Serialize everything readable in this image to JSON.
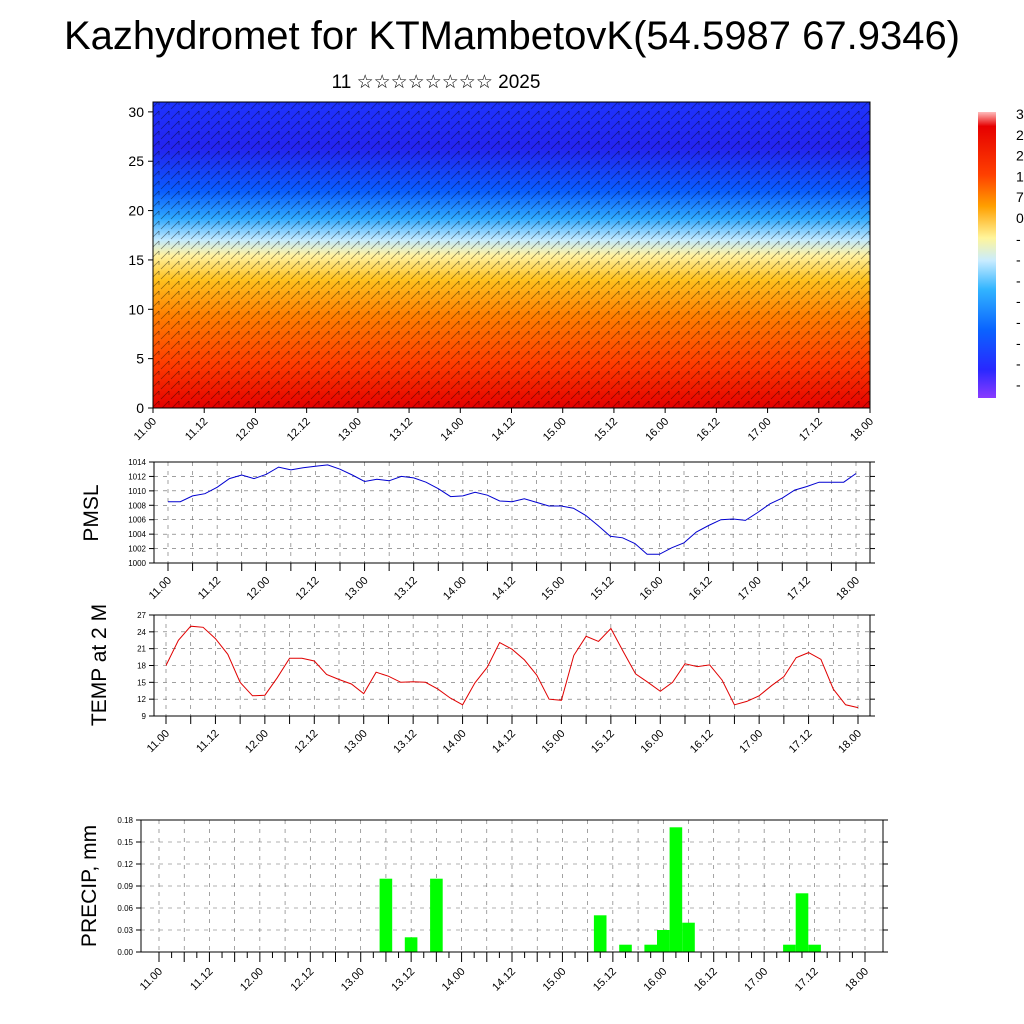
{
  "title": "Kazhydromet for KTMambetovK(54.5987 67.9346)",
  "subtitle": "11 ☆☆☆☆☆☆☆☆ 2025",
  "time_labels": [
    "11.00",
    "11.12",
    "12.00",
    "12.12",
    "13.00",
    "13.12",
    "14.00",
    "14.12",
    "15.00",
    "15.12",
    "16.00",
    "16.12",
    "17.00",
    "17.12",
    "18.00"
  ],
  "chart_data": [
    {
      "type": "heatmap",
      "name": "cross_section",
      "y_ticks": [
        0,
        5,
        10,
        15,
        20,
        25,
        30
      ],
      "ylim": [
        0,
        31
      ],
      "colorbar_labels": [
        "3",
        "2",
        "2",
        "1",
        "7",
        "0",
        "-",
        "-",
        "-",
        "-",
        "-",
        "-",
        "-",
        "-"
      ],
      "colorbar_colors": [
        "#ff9f9f",
        "#e60000",
        "#ff4000",
        "#ff8c00",
        "#ffc800",
        "#fff59a",
        "#a6e0ff",
        "#32b4ff",
        "#0a64ff",
        "#2828ff",
        "#7a2bff"
      ],
      "notes": "wind barbs overlay on temperature field; red near surface, blue aloft"
    },
    {
      "type": "line",
      "name": "pmsl",
      "ylabel": "PMSL",
      "ylim": [
        1000,
        1014
      ],
      "y_ticks": [
        1000,
        1002,
        1004,
        1006,
        1008,
        1010,
        1012,
        1014
      ],
      "color": "#0000d0",
      "x_hours": [
        0,
        3,
        6,
        9,
        12,
        15,
        18,
        21,
        24,
        27,
        30,
        33,
        36,
        39,
        42,
        45,
        48,
        51,
        54,
        57,
        60,
        63,
        66,
        69,
        72,
        75,
        78,
        81,
        84,
        87,
        90,
        93,
        96,
        99,
        102,
        105,
        108,
        111,
        114,
        117,
        120,
        123,
        126,
        129,
        132,
        135,
        138,
        141,
        144,
        147,
        150,
        153,
        156,
        159,
        162,
        165,
        168
      ],
      "values": [
        1008.5,
        1008.5,
        1009.3,
        1009.6,
        1010.5,
        1011.7,
        1012.2,
        1011.7,
        1012.3,
        1013.3,
        1012.9,
        1013.2,
        1013.4,
        1013.6,
        1013.0,
        1012.2,
        1011.3,
        1011.6,
        1011.4,
        1012.0,
        1011.8,
        1011.2,
        1010.3,
        1009.2,
        1009.3,
        1009.8,
        1009.4,
        1008.6,
        1008.5,
        1008.9,
        1008.4,
        1007.9,
        1007.9,
        1007.6,
        1006.6,
        1005.2,
        1003.7,
        1003.5,
        1002.7,
        1001.2,
        1001.2,
        1002.1,
        1002.8,
        1004.3,
        1005.2,
        1006.0,
        1006.1,
        1005.9,
        1007.0,
        1008.2,
        1009.0,
        1010.1,
        1010.6,
        1011.2,
        1011.2,
        1011.2,
        1012.4
      ]
    },
    {
      "type": "line",
      "name": "temp2m",
      "ylabel": "TEMP at 2 M",
      "ylim": [
        9,
        27
      ],
      "y_ticks": [
        9,
        12,
        15,
        18,
        21,
        24,
        27
      ],
      "color": "#e00000",
      "x_hours": [
        0,
        3,
        6,
        9,
        12,
        15,
        18,
        21,
        24,
        27,
        30,
        33,
        36,
        39,
        42,
        45,
        48,
        51,
        54,
        57,
        60,
        63,
        66,
        69,
        72,
        75,
        78,
        81,
        84,
        87,
        90,
        93,
        96,
        99,
        102,
        105,
        108,
        111,
        114,
        117,
        120,
        123,
        126,
        129,
        132,
        135,
        138,
        141,
        144,
        147,
        150,
        153,
        156,
        159,
        162,
        165,
        168
      ],
      "values": [
        18.0,
        22.5,
        25.0,
        24.8,
        22.8,
        20.0,
        15.0,
        12.6,
        12.7,
        15.8,
        19.3,
        19.3,
        18.8,
        16.4,
        15.5,
        14.7,
        13.0,
        16.8,
        16.1,
        15.0,
        15.1,
        15.0,
        13.8,
        12.2,
        11.0,
        14.9,
        17.7,
        22.1,
        20.9,
        19.0,
        16.3,
        12.0,
        11.8,
        19.8,
        23.2,
        22.3,
        24.6,
        20.5,
        16.5,
        15.0,
        13.4,
        15.0,
        18.3,
        17.8,
        18.1,
        15.4,
        11.0,
        11.6,
        12.6,
        14.4,
        16.0,
        19.4,
        20.3,
        19.1,
        13.8,
        11.0,
        10.5
      ]
    },
    {
      "type": "bar",
      "name": "precip",
      "ylabel": "PRECIP, mm",
      "ylim": [
        0,
        0.18
      ],
      "y_ticks": [
        "0.00",
        "0.03",
        "0.06",
        "0.09",
        "0.12",
        "0.15",
        "0.18"
      ],
      "color": "#00ff00",
      "x_hours": [
        54,
        60,
        66,
        105,
        111,
        117,
        120,
        123,
        126,
        150,
        153,
        156
      ],
      "values": [
        0.1,
        0.02,
        0.1,
        0.05,
        0.01,
        0.01,
        0.03,
        0.17,
        0.04,
        0.01,
        0.08,
        0.01
      ]
    }
  ]
}
